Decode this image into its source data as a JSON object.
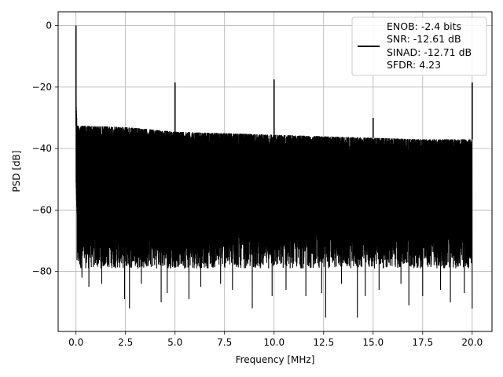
{
  "chart_data": {
    "type": "line",
    "title": "",
    "xlabel": "Frequency [MHz]",
    "ylabel": "PSD [dB]",
    "xlim": [
      -0.9,
      21.0
    ],
    "ylim": [
      -99.5,
      4.5
    ],
    "x_ticks": [
      0.0,
      2.5,
      5.0,
      7.5,
      10.0,
      12.5,
      15.0,
      17.5,
      20.0
    ],
    "x_tick_labels": [
      "0.0",
      "2.5",
      "5.0",
      "7.5",
      "10.0",
      "12.5",
      "15.0",
      "17.5",
      "20.0"
    ],
    "y_ticks": [
      0,
      -20,
      -40,
      -60,
      -80
    ],
    "y_tick_labels": [
      "0",
      "−20",
      "−40",
      "−60",
      "−80"
    ],
    "grid": true,
    "legend_placement": "top-right",
    "legend_lines": [
      "ENOB: -2.4 bits",
      "SNR: -12.61 dB",
      "SINAD: -12.71 dB",
      "SFDR: 4.23"
    ],
    "series": [
      {
        "color": "#000000",
        "x_range": [
          0.0,
          20.0
        ],
        "noise_ceiling": [
          [
            0.0,
            -32.5
          ],
          [
            2.5,
            -33.0
          ],
          [
            5.0,
            -34.5
          ],
          [
            10.0,
            -35.5
          ],
          [
            15.0,
            -36.5
          ],
          [
            17.5,
            -37.0
          ],
          [
            20.0,
            -37.0
          ]
        ],
        "noise_floor_typical": -72,
        "noise_min_dips": [
          [
            0.3,
            -82
          ],
          [
            0.65,
            -85
          ],
          [
            1.3,
            -84
          ],
          [
            2.45,
            -89
          ],
          [
            2.7,
            -92
          ],
          [
            3.3,
            -84
          ],
          [
            4.3,
            -90
          ],
          [
            4.6,
            -87
          ],
          [
            5.7,
            -89
          ],
          [
            6.3,
            -85
          ],
          [
            7.3,
            -84
          ],
          [
            7.9,
            -86
          ],
          [
            8.9,
            -92
          ],
          [
            9.9,
            -88
          ],
          [
            10.6,
            -86
          ],
          [
            11.6,
            -88
          ],
          [
            12.4,
            -87
          ],
          [
            12.6,
            -95
          ],
          [
            13.4,
            -84
          ],
          [
            14.2,
            -95
          ],
          [
            14.6,
            -88
          ],
          [
            15.3,
            -86
          ],
          [
            16.4,
            -84
          ],
          [
            16.8,
            -91
          ],
          [
            17.5,
            -88
          ],
          [
            18.4,
            -86
          ],
          [
            18.9,
            -90
          ],
          [
            19.6,
            -87
          ],
          [
            20.0,
            -92
          ]
        ],
        "spikes": [
          [
            0.0,
            0.0
          ],
          [
            5.0,
            -18.5
          ],
          [
            10.0,
            -17.5
          ],
          [
            15.0,
            -30.0
          ],
          [
            20.0,
            -18.5
          ]
        ]
      }
    ]
  }
}
